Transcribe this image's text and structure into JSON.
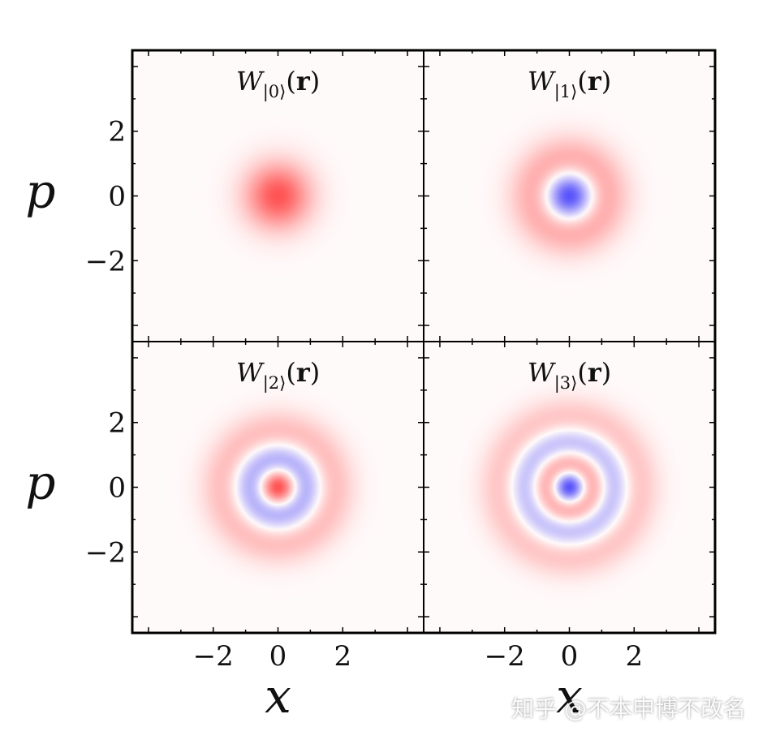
{
  "chart_data": {
    "type": "heatmap",
    "description_free": true,
    "layout": "2x2",
    "colormap": {
      "positive": "#ff0000",
      "zero": "#ffffff",
      "negative": "#0000ff"
    },
    "xlabel": "x",
    "ylabel": "p",
    "xlim": [
      -4.5,
      4.5
    ],
    "ylim": [
      -4.5,
      4.5
    ],
    "x_ticks": [
      "−2",
      "0",
      "2"
    ],
    "y_ticks": [
      "2",
      "0",
      "−2"
    ],
    "x_tick_values": [
      -2,
      0,
      2
    ],
    "y_tick_values": [
      2,
      0,
      -2
    ],
    "panels": [
      {
        "title_main": "W",
        "title_sub": "|0⟩",
        "title_arg": "(r)",
        "n": 0
      },
      {
        "title_main": "W",
        "title_sub": "|1⟩",
        "title_arg": "(r)",
        "n": 1
      },
      {
        "title_main": "W",
        "title_sub": "|2⟩",
        "title_arg": "(r)",
        "n": 2
      },
      {
        "title_main": "W",
        "title_sub": "|3⟩",
        "title_arg": "(r)",
        "n": 3
      }
    ]
  },
  "watermark": "知乎 @不本申博不改名"
}
